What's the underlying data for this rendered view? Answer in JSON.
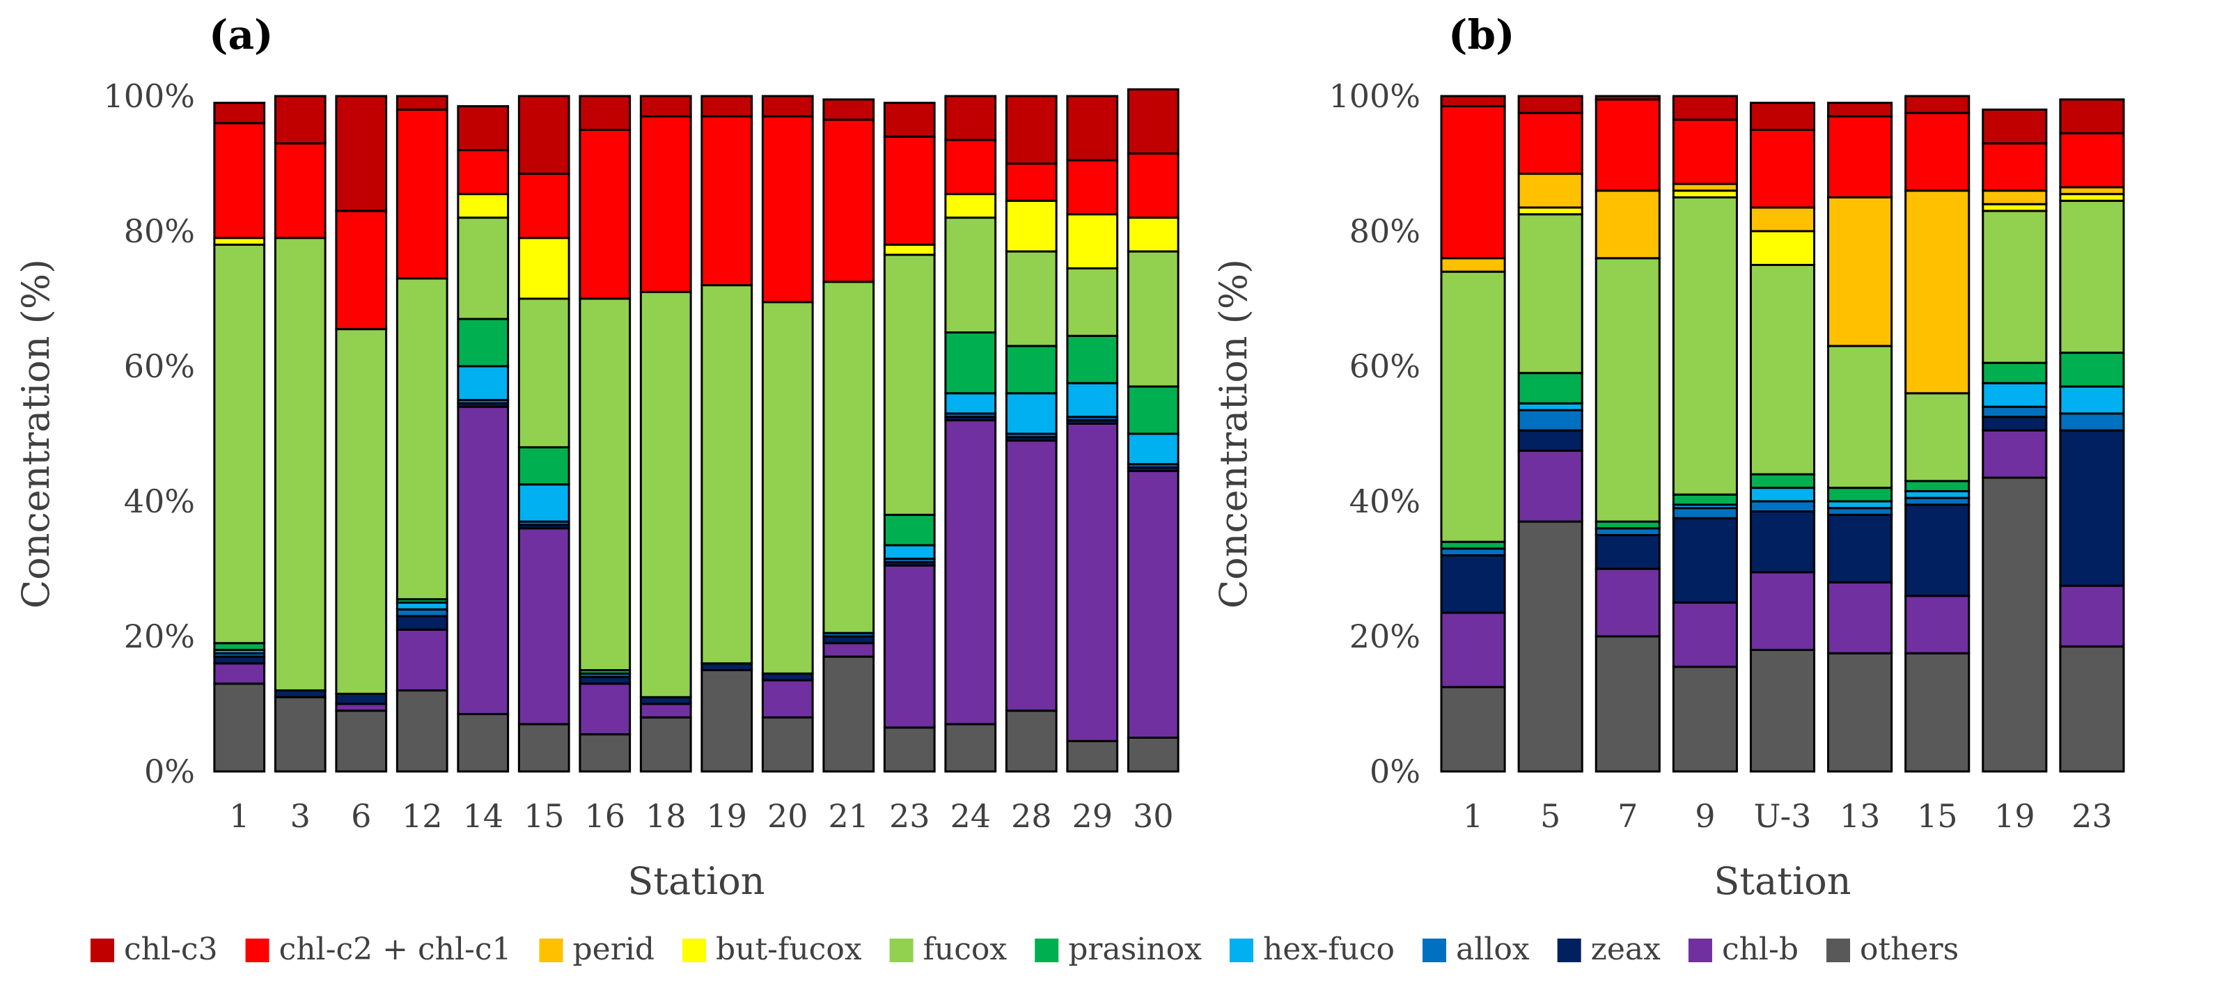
{
  "legend": [
    {
      "key": "chl_c3",
      "label": "chl-c3",
      "color": "#C00000"
    },
    {
      "key": "chl_c2c1",
      "label": "chl-c2 + chl-c1",
      "color": "#FF0000"
    },
    {
      "key": "perid",
      "label": "perid",
      "color": "#FFC000"
    },
    {
      "key": "but_fucox",
      "label": "but-fucox",
      "color": "#FFFF00"
    },
    {
      "key": "fucox",
      "label": "fucox",
      "color": "#92D050"
    },
    {
      "key": "prasinox",
      "label": "prasinox",
      "color": "#00B050"
    },
    {
      "key": "hex_fuco",
      "label": "hex-fuco",
      "color": "#00B0F0"
    },
    {
      "key": "allox",
      "label": "allox",
      "color": "#0070C0"
    },
    {
      "key": "zeax",
      "label": "zeax",
      "color": "#002060"
    },
    {
      "key": "chl_b",
      "label": "chl-b",
      "color": "#7030A0"
    },
    {
      "key": "others",
      "label": "others",
      "color": "#595959"
    }
  ],
  "chart_data": [
    {
      "panel": "(a)",
      "type": "bar",
      "stacked": true,
      "xlabel": "Station",
      "ylabel": "Concentration (%)",
      "ylim": [
        0,
        100
      ],
      "yticks": [
        "0%",
        "20%",
        "40%",
        "60%",
        "80%",
        "100%"
      ],
      "categories": [
        "1",
        "3",
        "6",
        "12",
        "14",
        "15",
        "16",
        "18",
        "19",
        "20",
        "21",
        "23",
        "24",
        "28",
        "29",
        "30"
      ],
      "series": [
        {
          "key": "others",
          "name": "others",
          "values": [
            13,
            11,
            9,
            12,
            8.5,
            7,
            5.5,
            8,
            15,
            8,
            17,
            6.5,
            7,
            9,
            4.5,
            5
          ]
        },
        {
          "key": "chl_b",
          "name": "chl-b",
          "values": [
            3,
            0,
            1,
            9,
            45.5,
            29,
            7.5,
            2,
            0,
            5.5,
            2,
            24,
            45,
            40,
            47,
            39.5
          ]
        },
        {
          "key": "zeax",
          "name": "zeax",
          "values": [
            1,
            1,
            1.5,
            2,
            0.5,
            0.5,
            1,
            1,
            1,
            1,
            1,
            0.5,
            0.5,
            0.5,
            0.5,
            0.5
          ]
        },
        {
          "key": "allox",
          "name": "allox",
          "values": [
            0.5,
            0,
            0,
            1,
            0.5,
            0.5,
            0.5,
            0,
            0,
            0,
            0.5,
            0.5,
            0.5,
            0.5,
            0.5,
            0.5
          ]
        },
        {
          "key": "hex_fuco",
          "name": "hex-fuco",
          "values": [
            0.5,
            0,
            0,
            1,
            5,
            5.5,
            0,
            0,
            0,
            0,
            0,
            2,
            3,
            6,
            5,
            4.5
          ]
        },
        {
          "key": "prasinox",
          "name": "prasinox",
          "values": [
            1,
            0,
            0,
            0.5,
            7,
            5.5,
            0.5,
            0,
            0,
            0,
            0,
            4.5,
            9,
            7,
            7,
            7
          ]
        },
        {
          "key": "fucox",
          "name": "fucox",
          "values": [
            59,
            67,
            54,
            47.5,
            15,
            22,
            55,
            60,
            56,
            55,
            52,
            38.5,
            17,
            14,
            10,
            20
          ]
        },
        {
          "key": "but_fucox",
          "name": "but-fucox",
          "values": [
            1,
            0,
            0,
            0,
            3.5,
            9,
            0,
            0,
            0,
            0,
            0,
            1.5,
            3.5,
            7.5,
            8,
            5
          ]
        },
        {
          "key": "perid",
          "name": "perid",
          "values": [
            0,
            0,
            0,
            0,
            0,
            0,
            0,
            0,
            0,
            0,
            0,
            0,
            0,
            0,
            0,
            0
          ]
        },
        {
          "key": "chl_c2c1",
          "name": "chl-c2 + chl-c1",
          "values": [
            17,
            14,
            17.5,
            25,
            6.5,
            9.5,
            25,
            26,
            25,
            27.5,
            24,
            16,
            8,
            5.5,
            8,
            9.5
          ]
        },
        {
          "key": "chl_c3",
          "name": "chl-c3",
          "values": [
            3,
            7,
            17,
            2,
            6.5,
            11.5,
            5,
            3,
            3,
            3,
            3,
            5,
            6.5,
            10,
            9.5,
            9.5
          ]
        }
      ]
    },
    {
      "panel": "(b)",
      "type": "bar",
      "stacked": true,
      "xlabel": "Station",
      "ylabel": "Concentration (%)",
      "ylim": [
        0,
        100
      ],
      "yticks": [
        "0%",
        "20%",
        "40%",
        "60%",
        "80%",
        "100%"
      ],
      "categories": [
        "1",
        "5",
        "7",
        "9",
        "U-3",
        "13",
        "15",
        "19",
        "23"
      ],
      "series": [
        {
          "key": "others",
          "name": "others",
          "values": [
            12.5,
            37,
            20,
            15.5,
            18,
            17.5,
            17.5,
            43.5,
            18.5
          ]
        },
        {
          "key": "chl_b",
          "name": "chl-b",
          "values": [
            11,
            10.5,
            10,
            9.5,
            11.5,
            10.5,
            8.5,
            7,
            9
          ]
        },
        {
          "key": "zeax",
          "name": "zeax",
          "values": [
            8.5,
            3,
            5,
            12.5,
            9,
            10,
            13.5,
            2,
            23
          ]
        },
        {
          "key": "allox",
          "name": "allox",
          "values": [
            1,
            3,
            1,
            1.5,
            1.5,
            1,
            1,
            1.5,
            2.5
          ]
        },
        {
          "key": "hex_fuco",
          "name": "hex-fuco",
          "values": [
            0,
            1,
            0,
            0.5,
            2,
            1,
            1,
            3.5,
            4
          ]
        },
        {
          "key": "prasinox",
          "name": "prasinox",
          "values": [
            1,
            4.5,
            1,
            1.5,
            2,
            2,
            1.5,
            3,
            5
          ]
        },
        {
          "key": "fucox",
          "name": "fucox",
          "values": [
            40,
            23.5,
            39,
            44,
            31,
            21,
            13,
            22.5,
            22.5
          ]
        },
        {
          "key": "but_fucox",
          "name": "but-fucox",
          "values": [
            0,
            1,
            0,
            1,
            5,
            0,
            0,
            1,
            1
          ]
        },
        {
          "key": "perid",
          "name": "perid",
          "values": [
            2,
            5,
            10,
            1,
            3.5,
            22,
            30,
            2,
            1
          ]
        },
        {
          "key": "chl_c2c1",
          "name": "chl-c2 + chl-c1",
          "values": [
            22.5,
            9,
            13.5,
            9.5,
            11.5,
            12,
            11.5,
            7,
            8
          ]
        },
        {
          "key": "chl_c3",
          "name": "chl-c3",
          "values": [
            1.5,
            2.5,
            0.5,
            3.5,
            4,
            2,
            2.5,
            5,
            5
          ]
        }
      ]
    }
  ]
}
